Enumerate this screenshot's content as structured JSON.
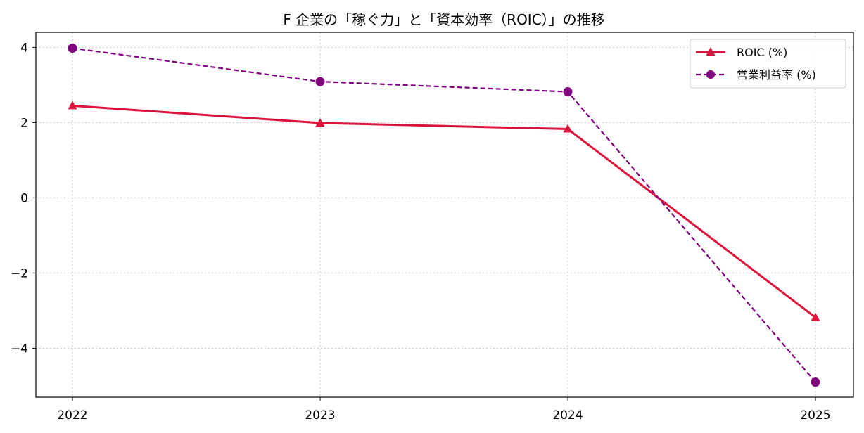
{
  "chart_data": {
    "type": "line",
    "title": "F 企業の「稼ぐ力」と「資本効率（ROIC）」の推移",
    "xlabel": "",
    "ylabel": "",
    "categories": [
      "2022",
      "2023",
      "2024",
      "2025"
    ],
    "yticks": [
      "4",
      "2",
      "0",
      "−2",
      "−4"
    ],
    "ytick_values": [
      4,
      2,
      0,
      -2,
      -4
    ],
    "ylim": [
      -5.3,
      4.4
    ],
    "grid": true,
    "legend_position": "top-right",
    "series": [
      {
        "name": "ROIC (%)",
        "values": [
          2.45,
          1.99,
          1.83,
          -3.18
        ],
        "color": "#dc143c",
        "line_style": "solid",
        "marker": "triangle"
      },
      {
        "name": "営業利益率 (%)",
        "values": [
          3.98,
          3.09,
          2.82,
          -4.9
        ],
        "color": "#800080",
        "line_style": "dashed",
        "marker": "circle"
      }
    ]
  }
}
